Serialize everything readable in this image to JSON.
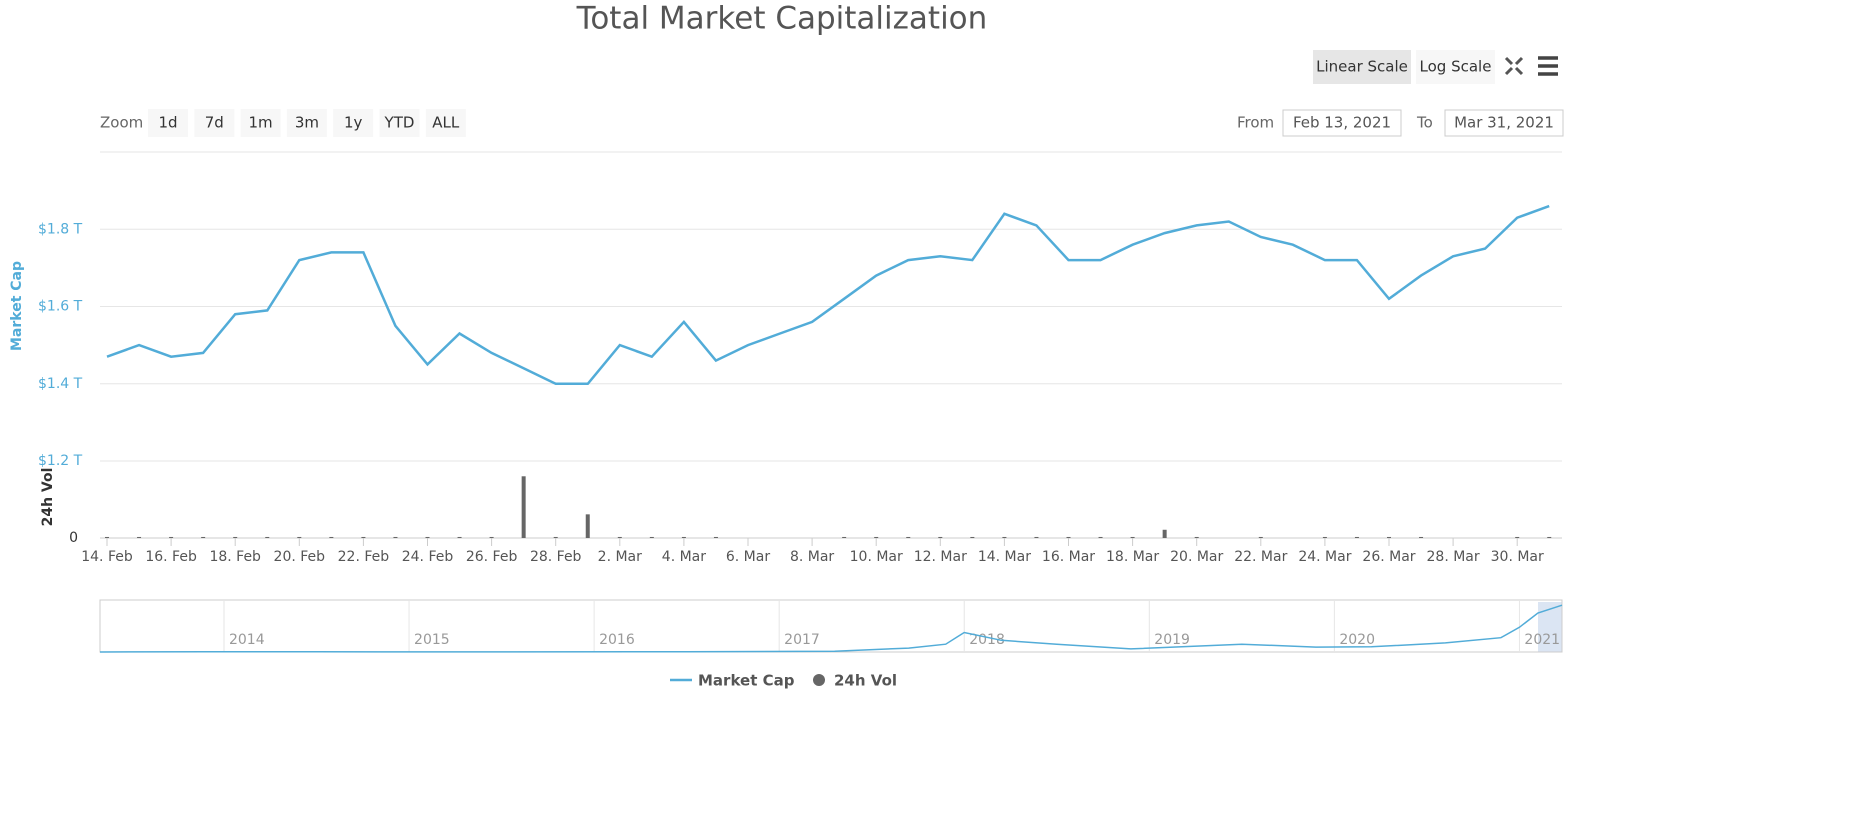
{
  "chart_data": {
    "type": "line",
    "title": "Total Market Capitalization",
    "y_label": "Market Cap",
    "y2_label": "24h Vol",
    "x": [
      "14. Feb",
      "15. Feb",
      "16. Feb",
      "17. Feb",
      "18. Feb",
      "19. Feb",
      "20. Feb",
      "21. Feb",
      "22. Feb",
      "23. Feb",
      "24. Feb",
      "25. Feb",
      "26. Feb",
      "27. Feb",
      "28. Feb",
      "1. Mar",
      "2. Mar",
      "3. Mar",
      "4. Mar",
      "5. Mar",
      "6. Mar",
      "7. Mar",
      "8. Mar",
      "9. Mar",
      "10. Mar",
      "11. Mar",
      "12. Mar",
      "13. Mar",
      "14. Mar",
      "15. Mar",
      "16. Mar",
      "17. Mar",
      "18. Mar",
      "19. Mar",
      "20. Mar",
      "21. Mar",
      "22. Mar",
      "23. Mar",
      "24. Mar",
      "25. Mar",
      "26. Mar",
      "27. Mar",
      "28. Mar",
      "29. Mar",
      "30. Mar",
      "31. Mar"
    ],
    "xticks": [
      "14. Feb",
      "16. Feb",
      "18. Feb",
      "20. Feb",
      "22. Feb",
      "24. Feb",
      "26. Feb",
      "28. Feb",
      "2. Mar",
      "4. Mar",
      "6. Mar",
      "8. Mar",
      "10. Mar",
      "12. Mar",
      "14. Mar",
      "16. Mar",
      "18. Mar",
      "20. Mar",
      "22. Mar",
      "24. Mar",
      "26. Mar",
      "28. Mar",
      "30. Mar"
    ],
    "series": [
      {
        "name": "Market Cap",
        "color": "#52acd8",
        "type": "line",
        "values": [
          1.47,
          1.5,
          1.47,
          1.48,
          1.58,
          1.59,
          1.72,
          1.74,
          1.74,
          1.55,
          1.45,
          1.53,
          1.48,
          1.44,
          1.4,
          1.4,
          1.5,
          1.47,
          1.56,
          1.46,
          1.5,
          1.53,
          1.56,
          1.62,
          1.68,
          1.72,
          1.73,
          1.72,
          1.84,
          1.81,
          1.72,
          1.72,
          1.76,
          1.79,
          1.81,
          1.82,
          1.78,
          1.76,
          1.72,
          1.72,
          1.62,
          1.68,
          1.73,
          1.75,
          1.83,
          1.86
        ]
      },
      {
        "name": "24h Vol",
        "color": "#666666",
        "type": "column",
        "axis": "y2",
        "values": [
          0.01,
          0.01,
          0.01,
          0.01,
          0.01,
          0.01,
          0.01,
          0.01,
          0.01,
          0.01,
          0.01,
          0.01,
          0.01,
          0.6,
          0.01,
          0.23,
          0.01,
          0.01,
          0.01,
          0.01,
          null,
          null,
          null,
          0.01,
          0.01,
          0.01,
          0.01,
          0.01,
          0.01,
          0.01,
          0.01,
          0.01,
          0.01,
          0.08,
          0.01,
          null,
          0.01,
          null,
          0.01,
          0.01,
          0.01,
          0.01,
          null,
          null,
          0.01,
          0.01
        ]
      }
    ],
    "ylim": [
      1.2,
      2.0
    ],
    "yticks": [
      {
        "value": 1.2,
        "label": "$1.2 T"
      },
      {
        "value": 1.4,
        "label": "$1.4 T"
      },
      {
        "value": 1.6,
        "label": "$1.6 T"
      },
      {
        "value": 1.8,
        "label": "$1.8 T"
      }
    ],
    "y2lim": [
      0,
      0.7
    ],
    "y2ticks": [
      0
    ],
    "grid": true,
    "legend": "bottom"
  },
  "navigator": {
    "x": [
      2013.33,
      2013.9,
      2014.5,
      2015.5,
      2016.5,
      2017.3,
      2017.7,
      2017.9,
      2018.0,
      2018.2,
      2018.5,
      2018.9,
      2019.5,
      2019.9,
      2020.2,
      2020.6,
      2020.9,
      2021.0,
      2021.1,
      2021.23
    ],
    "values": [
      0.001,
      0.01,
      0.008,
      0.004,
      0.01,
      0.03,
      0.15,
      0.3,
      0.75,
      0.45,
      0.3,
      0.12,
      0.3,
      0.19,
      0.2,
      0.35,
      0.55,
      0.95,
      1.5,
      1.8
    ],
    "xlim": [
      2013.33,
      2021.23
    ],
    "ylim": [
      0,
      2
    ],
    "xticks": [
      2014,
      2015,
      2016,
      2017,
      2018,
      2019,
      2020,
      2021
    ]
  },
  "controls": {
    "zoom_label": "Zoom",
    "zoom_buttons": [
      "1d",
      "7d",
      "1m",
      "3m",
      "1y",
      "YTD",
      "ALL"
    ],
    "scale_buttons": [
      "Linear Scale",
      "Log Scale"
    ],
    "from_label": "From",
    "from_date": "Feb 13, 2021",
    "to_label": "To",
    "to_date": "Mar 31, 2021"
  }
}
